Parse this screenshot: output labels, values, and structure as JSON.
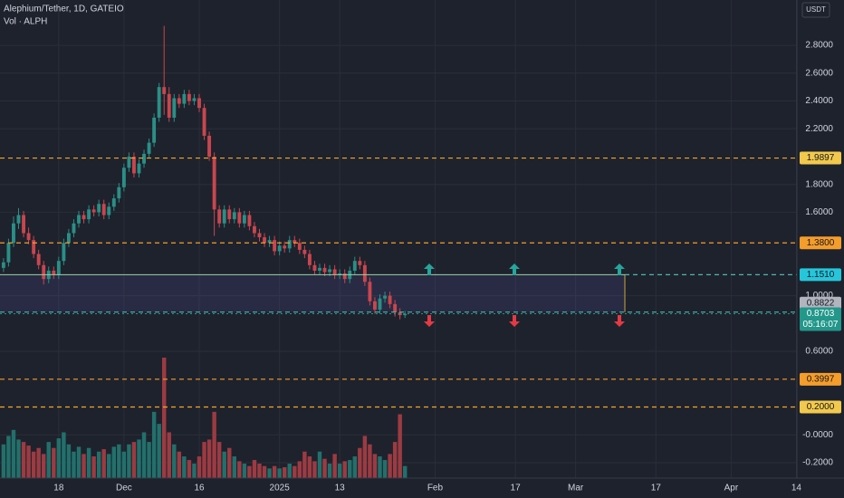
{
  "chart_data": {
    "type": "candlestick",
    "title": "Alephium/Tether, 1D, GATEIO",
    "subtitle": "Vol · ALPH",
    "currency": "USDT",
    "up_color": "#2a8f86",
    "down_color": "#c9464e",
    "open": [
      1.2,
      1.24,
      1.38,
      1.52,
      1.58,
      1.45,
      1.4,
      1.3,
      1.22,
      1.12,
      1.18,
      1.15,
      1.25,
      1.38,
      1.45,
      1.52,
      1.58,
      1.55,
      1.62,
      1.6,
      1.66,
      1.58,
      1.64,
      1.7,
      1.78,
      1.92,
      2.0,
      1.88,
      1.95,
      2.02,
      2.1,
      2.28,
      2.5,
      2.45,
      2.28,
      2.42,
      2.38,
      2.45,
      2.4,
      2.42,
      2.35,
      2.15,
      2.0,
      1.62,
      1.52,
      1.62,
      1.55,
      1.6,
      1.52,
      1.58,
      1.5,
      1.45,
      1.42,
      1.38,
      1.4,
      1.32,
      1.36,
      1.34,
      1.4,
      1.38,
      1.33,
      1.3,
      1.22,
      1.18,
      1.2,
      1.17,
      1.19,
      1.15,
      1.16,
      1.12,
      1.18,
      1.25,
      1.22,
      1.1,
      0.96,
      0.9,
      0.98,
      1.0,
      0.94,
      0.88,
      0.86
    ],
    "high": [
      1.27,
      1.41,
      1.57,
      1.63,
      1.61,
      1.49,
      1.43,
      1.33,
      1.25,
      1.21,
      1.21,
      1.28,
      1.41,
      1.48,
      1.55,
      1.61,
      1.61,
      1.65,
      1.65,
      1.69,
      1.69,
      1.67,
      1.73,
      1.81,
      1.95,
      2.03,
      2.03,
      1.98,
      2.05,
      2.13,
      2.31,
      2.53,
      2.94,
      2.5,
      2.45,
      2.45,
      2.48,
      2.48,
      2.45,
      2.45,
      2.38,
      2.18,
      2.03,
      1.65,
      1.65,
      1.65,
      1.63,
      1.63,
      1.61,
      1.61,
      1.53,
      1.48,
      1.45,
      1.43,
      1.43,
      1.39,
      1.39,
      1.43,
      1.43,
      1.41,
      1.36,
      1.33,
      1.25,
      1.23,
      1.23,
      1.22,
      1.22,
      1.19,
      1.19,
      1.21,
      1.28,
      1.28,
      1.25,
      1.13,
      0.99,
      1.01,
      1.03,
      1.03,
      0.97,
      0.91,
      0.89
    ],
    "low": [
      1.17,
      1.21,
      1.35,
      1.48,
      1.42,
      1.37,
      1.27,
      1.19,
      1.08,
      1.09,
      1.12,
      1.12,
      1.22,
      1.35,
      1.42,
      1.49,
      1.52,
      1.52,
      1.57,
      1.57,
      1.55,
      1.55,
      1.61,
      1.67,
      1.75,
      1.89,
      1.85,
      1.85,
      1.92,
      1.99,
      2.07,
      2.25,
      2.3,
      2.25,
      2.25,
      2.35,
      2.35,
      2.37,
      2.37,
      2.32,
      2.12,
      1.97,
      1.43,
      1.49,
      1.49,
      1.52,
      1.52,
      1.49,
      1.49,
      1.47,
      1.42,
      1.39,
      1.35,
      1.35,
      1.29,
      1.29,
      1.31,
      1.31,
      1.35,
      1.3,
      1.27,
      1.19,
      1.15,
      1.15,
      1.14,
      1.14,
      1.12,
      1.12,
      1.09,
      1.09,
      1.15,
      1.19,
      1.07,
      0.93,
      0.87,
      0.87,
      0.95,
      0.91,
      0.85,
      0.83,
      0.84
    ],
    "close": [
      1.24,
      1.38,
      1.52,
      1.58,
      1.45,
      1.4,
      1.3,
      1.22,
      1.12,
      1.18,
      1.15,
      1.25,
      1.38,
      1.45,
      1.52,
      1.58,
      1.55,
      1.62,
      1.6,
      1.66,
      1.58,
      1.64,
      1.7,
      1.78,
      1.92,
      2.0,
      1.88,
      1.95,
      2.02,
      2.1,
      2.28,
      2.5,
      2.45,
      2.28,
      2.42,
      2.38,
      2.45,
      2.4,
      2.42,
      2.35,
      2.15,
      2.0,
      1.62,
      1.52,
      1.62,
      1.55,
      1.6,
      1.52,
      1.58,
      1.5,
      1.45,
      1.42,
      1.38,
      1.4,
      1.32,
      1.36,
      1.34,
      1.4,
      1.38,
      1.33,
      1.3,
      1.22,
      1.18,
      1.2,
      1.17,
      1.19,
      1.15,
      1.16,
      1.12,
      1.18,
      1.25,
      1.22,
      1.1,
      0.96,
      0.9,
      0.98,
      1.0,
      0.94,
      0.88,
      0.86,
      0.87
    ],
    "volume": [
      28,
      35,
      40,
      32,
      30,
      27,
      22,
      25,
      20,
      30,
      25,
      33,
      38,
      28,
      22,
      26,
      20,
      25,
      18,
      22,
      24,
      20,
      26,
      28,
      22,
      28,
      30,
      32,
      38,
      30,
      55,
      45,
      100,
      38,
      28,
      22,
      18,
      15,
      12,
      18,
      30,
      32,
      55,
      30,
      22,
      25,
      18,
      14,
      12,
      10,
      15,
      12,
      10,
      8,
      10,
      8,
      9,
      12,
      10,
      14,
      22,
      18,
      14,
      22,
      16,
      12,
      20,
      12,
      14,
      15,
      18,
      25,
      35,
      28,
      20,
      18,
      15,
      20,
      30,
      53,
      10
    ],
    "vlim": [
      0,
      100
    ],
    "xlim": [
      -0.7,
      158.1
    ],
    "xticks": [
      {
        "value": 11,
        "label": "18"
      },
      {
        "value": 24,
        "label": "Dec"
      },
      {
        "value": 39,
        "label": "16"
      },
      {
        "value": 55,
        "label": "2025"
      },
      {
        "value": 67,
        "label": "13"
      },
      {
        "value": 86,
        "label": "Feb"
      },
      {
        "value": 102,
        "label": "17"
      },
      {
        "value": 114,
        "label": "Mar"
      },
      {
        "value": 130,
        "label": "17"
      },
      {
        "value": 145,
        "label": "Apr"
      },
      {
        "value": 158,
        "label": "14"
      }
    ],
    "ylim": [
      -0.311,
      3.126
    ],
    "yticks": [
      {
        "value": 2.8,
        "label": "2.8000"
      },
      {
        "value": 2.6,
        "label": "2.6000"
      },
      {
        "value": 2.4,
        "label": "2.4000"
      },
      {
        "value": 2.2,
        "label": "2.2000"
      },
      {
        "value": 1.8,
        "label": "1.8000"
      },
      {
        "value": 1.6,
        "label": "1.6000"
      },
      {
        "value": 1.0,
        "label": "1.0000"
      },
      {
        "value": 0.6,
        "label": "0.6000"
      },
      {
        "value": 0,
        "label": "-0.0000"
      },
      {
        "value": -0.2,
        "label": "-0.2000"
      }
    ],
    "grid": true,
    "levels": [
      {
        "value": 1.9897,
        "color": "#f2c94c",
        "line": "#f5a623"
      },
      {
        "value": 1.38,
        "label": "1.3800",
        "color": "#f59d2a",
        "line": "#f59d2a"
      },
      {
        "value": 1.151,
        "label": "1.1510",
        "color": "#26c6da",
        "line": "#4db6ac"
      },
      {
        "value": 0.8822,
        "color": "#b2b5be",
        "line": "#4db6ac"
      },
      {
        "value": 0.3997,
        "color": "#f59d2a",
        "line": "#f59d2a"
      },
      {
        "value": 0.2,
        "label": "0.2000",
        "color": "#f2c94c",
        "line": "#f5a623"
      }
    ],
    "last_price": {
      "value": 0.8703,
      "countdown": "05:16:07",
      "color": "#22978a"
    }
  }
}
